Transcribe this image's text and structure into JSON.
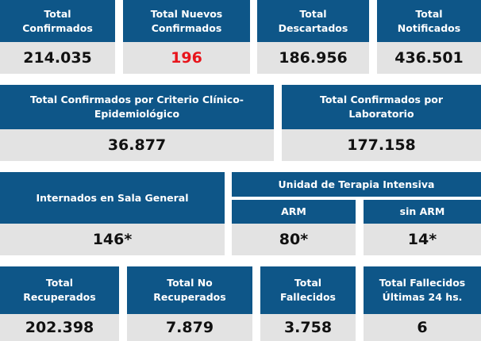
{
  "row1": [
    {
      "label": "Total Confirmados",
      "value": "214.035"
    },
    {
      "label": "Total Nuevos Confirmados",
      "value": "196"
    },
    {
      "label": "Total Descartados",
      "value": "186.956"
    },
    {
      "label": "Total Notificados",
      "value": "436.501"
    }
  ],
  "row2": [
    {
      "label": "Total Confirmados por Criterio Clínico-Epidemiológico",
      "value": "36.877"
    },
    {
      "label": "Total Confirmados por Laboratorio",
      "value": "177.158"
    }
  ],
  "row3": {
    "sala": {
      "label": "Internados en Sala General",
      "value": "146*"
    },
    "uti": {
      "label": "Unidad de Terapia Intensiva",
      "arm": {
        "label": "ARM",
        "value": "80*"
      },
      "sin_arm": {
        "label": "sin ARM",
        "value": "14*"
      }
    }
  },
  "row4": [
    {
      "label": "Total Recuperados",
      "value": "202.398"
    },
    {
      "label": "Total No Recuperados",
      "value": "7.879"
    },
    {
      "label": "Total Fallecidos",
      "value": "3.758"
    },
    {
      "label": "Total Fallecidos Últimas 24 hs.",
      "value": "6"
    }
  ],
  "colors": {
    "header": "#0e5688",
    "value_bg": "#e3e3e3",
    "highlight": "#e8141b"
  }
}
